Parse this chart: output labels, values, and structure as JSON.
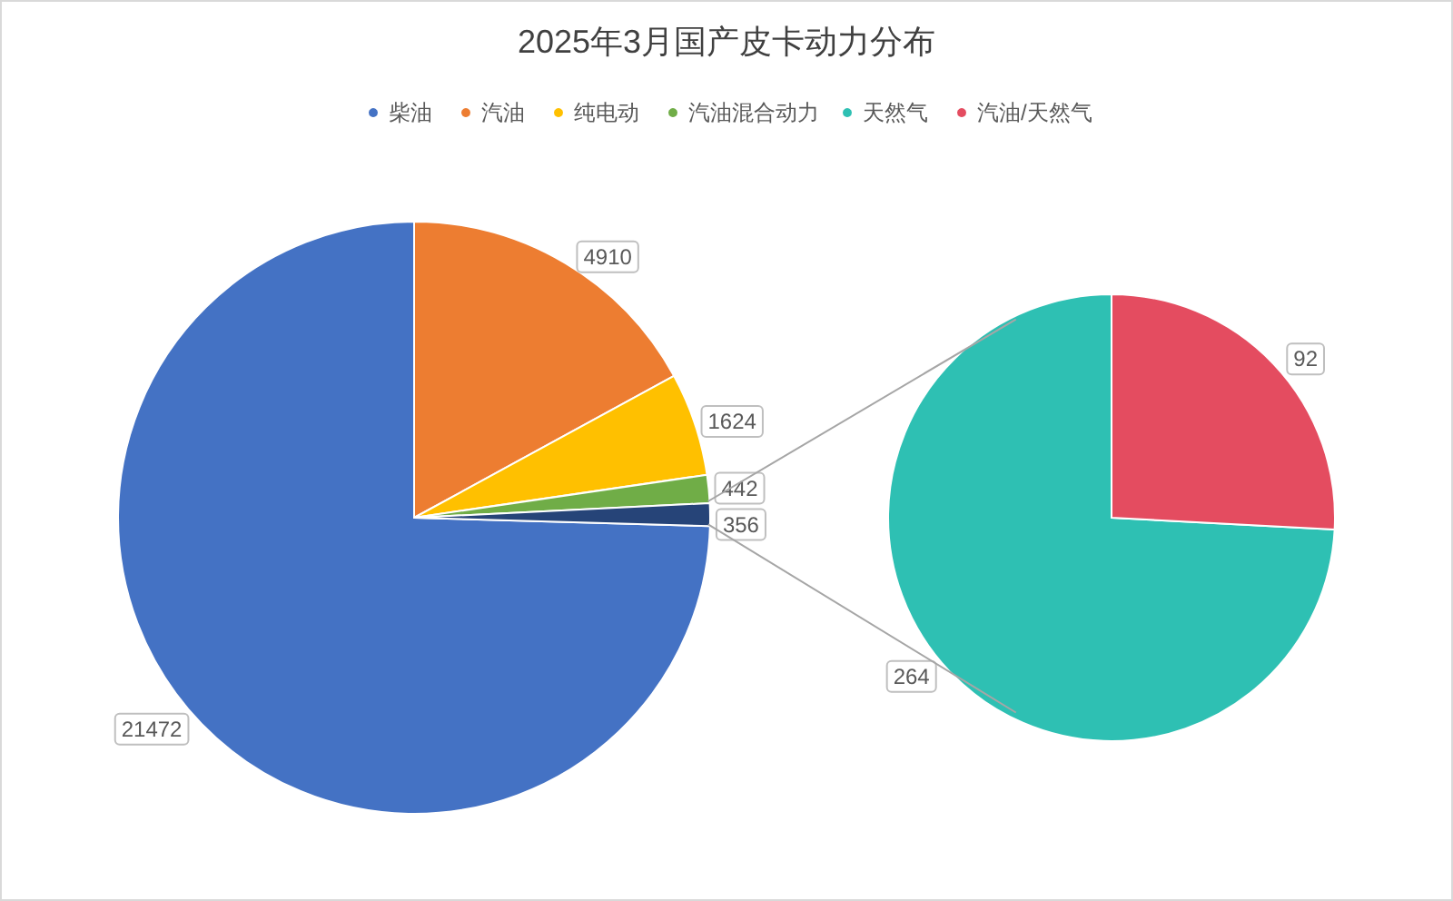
{
  "chart_data": [
    {
      "type": "pie",
      "title": "2025年3月国产皮卡动力分布",
      "legend": "top",
      "data_labels": true,
      "categories": [
        "柴油",
        "汽油",
        "纯电动",
        "汽油混合动力",
        null
      ],
      "values": [
        21472,
        4910,
        1624,
        442,
        356
      ],
      "colors": [
        "#4472c4",
        "#ed7d31",
        "#ffc000",
        "#70ad47",
        "#264478"
      ]
    },
    {
      "type": "pie",
      "legend": "top",
      "data_labels": true,
      "categories": [
        "天然气",
        "汽油/天然气"
      ],
      "values": [
        264,
        92
      ],
      "colors": [
        "#2ec0b3",
        "#e44c60"
      ]
    }
  ]
}
